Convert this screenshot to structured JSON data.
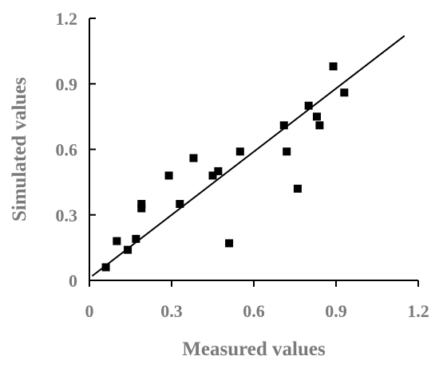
{
  "chart_data": {
    "type": "scatter",
    "xlabel": "Measured values",
    "ylabel": "Simulated values",
    "xlim": [
      0,
      1.2
    ],
    "ylim": [
      0,
      1.2
    ],
    "x_ticks": [
      "0",
      "0.3",
      "0.6",
      "0.9",
      "1.2"
    ],
    "y_ticks": [
      "0",
      "0.3",
      "0.6",
      "0.9",
      "1.2"
    ],
    "grid": false,
    "legend": "none",
    "points": [
      {
        "x": 0.06,
        "y": 0.06
      },
      {
        "x": 0.1,
        "y": 0.18
      },
      {
        "x": 0.14,
        "y": 0.14
      },
      {
        "x": 0.17,
        "y": 0.19
      },
      {
        "x": 0.19,
        "y": 0.33
      },
      {
        "x": 0.19,
        "y": 0.35
      },
      {
        "x": 0.29,
        "y": 0.48
      },
      {
        "x": 0.33,
        "y": 0.35
      },
      {
        "x": 0.38,
        "y": 0.56
      },
      {
        "x": 0.45,
        "y": 0.48
      },
      {
        "x": 0.47,
        "y": 0.5
      },
      {
        "x": 0.51,
        "y": 0.17
      },
      {
        "x": 0.55,
        "y": 0.59
      },
      {
        "x": 0.71,
        "y": 0.71
      },
      {
        "x": 0.72,
        "y": 0.59
      },
      {
        "x": 0.76,
        "y": 0.42
      },
      {
        "x": 0.8,
        "y": 0.8
      },
      {
        "x": 0.83,
        "y": 0.75
      },
      {
        "x": 0.84,
        "y": 0.71
      },
      {
        "x": 0.89,
        "y": 0.98
      },
      {
        "x": 0.93,
        "y": 0.86
      }
    ],
    "fit_line": {
      "x": [
        0.01,
        1.15
      ],
      "y": [
        0.02,
        1.12
      ]
    },
    "colors": {
      "points": "#000000",
      "line": "#000000",
      "labels": "#7a7a7a"
    }
  }
}
